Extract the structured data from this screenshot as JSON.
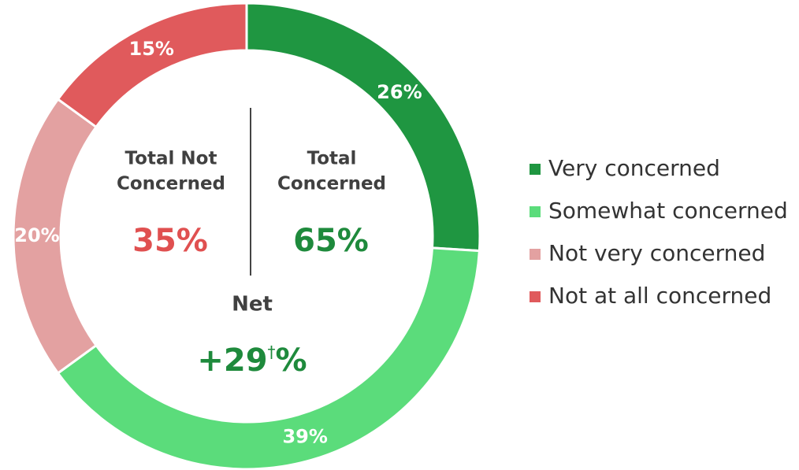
{
  "chart_data": {
    "type": "donut",
    "categories": [
      "Very concerned",
      "Somewhat concerned",
      "Not very concerned",
      "Not at all concerned"
    ],
    "values": [
      26,
      39,
      20,
      15
    ],
    "value_labels": [
      "26%",
      "39%",
      "20%",
      "15%"
    ],
    "colors": [
      "#1f9641",
      "#5bdc7b",
      "#e3a1a1",
      "#e05a5c"
    ],
    "legend": "right",
    "center": {
      "left_label": [
        "Total Not",
        "Concerned"
      ],
      "left_value": "35%",
      "right_label": [
        "Total",
        "Concerned"
      ],
      "right_value": "65%",
      "net_label": "Net",
      "net_value": "+29",
      "net_mark": "†",
      "net_unit": "%"
    }
  }
}
